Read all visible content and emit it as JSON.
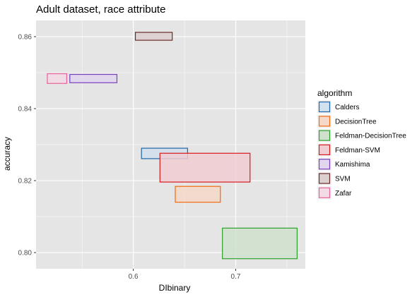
{
  "chart_data": {
    "type": "rectangles",
    "title": "Adult dataset, race attribute",
    "xlabel": "DIbinary",
    "ylabel": "accuracy",
    "xlim": [
      0.505,
      0.768
    ],
    "ylim": [
      0.7955,
      0.8645
    ],
    "x_ticks": [
      0.6,
      0.7
    ],
    "x_tick_labels": [
      "0.6",
      "0.7"
    ],
    "y_ticks": [
      0.8,
      0.82,
      0.84,
      0.86
    ],
    "y_tick_labels": [
      "0.80",
      "0.82",
      "0.84",
      "0.86"
    ],
    "grid": true,
    "background": "#e5e5e5",
    "legend": {
      "title": "algorithm",
      "position": "right"
    },
    "series": [
      {
        "name": "Calders",
        "color": "#2166ac",
        "fill": "#d1e1ef",
        "xmin": 0.608,
        "xmax": 0.653,
        "ymin": 0.8261,
        "ymax": 0.829
      },
      {
        "name": "DecisionTree",
        "color": "#f16913",
        "fill": "#f5d9c8",
        "xmin": 0.641,
        "xmax": 0.685,
        "ymin": 0.814,
        "ymax": 0.8184
      },
      {
        "name": "Feldman-DecisionTree",
        "color": "#2ca02c",
        "fill": "#cfe0cd",
        "xmin": 0.687,
        "xmax": 0.76,
        "ymin": 0.7983,
        "ymax": 0.8068
      },
      {
        "name": "Feldman-SVM",
        "color": "#d7191c",
        "fill": "#f0cdd2",
        "xmin": 0.626,
        "xmax": 0.714,
        "ymin": 0.8196,
        "ymax": 0.8276
      },
      {
        "name": "Kamishima",
        "color": "#7b3fbf",
        "fill": "#e2d6ee",
        "xmin": 0.538,
        "xmax": 0.584,
        "ymin": 0.8472,
        "ymax": 0.8495
      },
      {
        "name": "SVM",
        "color": "#6b2b2b",
        "fill": "#dccfcf",
        "xmin": 0.602,
        "xmax": 0.638,
        "ymin": 0.859,
        "ymax": 0.8612
      },
      {
        "name": "Zafar",
        "color": "#e7629a",
        "fill": "#f3dbe6",
        "xmin": 0.516,
        "xmax": 0.535,
        "ymin": 0.847,
        "ymax": 0.8497
      }
    ]
  }
}
